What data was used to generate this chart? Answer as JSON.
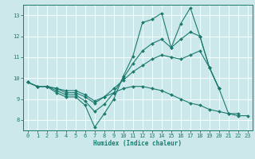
{
  "xlabel": "Humidex (Indice chaleur)",
  "bg_color": "#cce8ea",
  "grid_color": "#ffffff",
  "line_color": "#1a7a6e",
  "xlim": [
    -0.5,
    23.5
  ],
  "ylim": [
    7.5,
    13.5
  ],
  "xticks": [
    0,
    1,
    2,
    3,
    4,
    5,
    6,
    7,
    8,
    9,
    10,
    11,
    12,
    13,
    14,
    15,
    16,
    17,
    18,
    19,
    20,
    21,
    22,
    23
  ],
  "yticks": [
    8,
    9,
    10,
    11,
    12,
    13
  ],
  "lines": [
    {
      "x": [
        0,
        1,
        2,
        3,
        4,
        5,
        6,
        7,
        8,
        9,
        10,
        11,
        12,
        13,
        14,
        15,
        16,
        17,
        18,
        19,
        20
      ],
      "y": [
        9.8,
        9.6,
        9.6,
        9.3,
        9.1,
        9.1,
        8.7,
        7.65,
        8.3,
        9.0,
        10.1,
        11.05,
        12.65,
        12.8,
        13.1,
        11.45,
        12.6,
        13.35,
        12.0,
        10.5,
        9.5
      ]
    },
    {
      "x": [
        0,
        1,
        2,
        3,
        4,
        5,
        6,
        7,
        8,
        9,
        10,
        11,
        12,
        13,
        14,
        15,
        16,
        17,
        18,
        19,
        20
      ],
      "y": [
        9.8,
        9.6,
        9.6,
        9.4,
        9.2,
        9.2,
        8.9,
        8.4,
        8.75,
        9.3,
        10.0,
        10.7,
        11.3,
        11.65,
        11.85,
        11.45,
        11.85,
        12.2,
        12.0,
        10.5,
        9.5
      ]
    },
    {
      "x": [
        0,
        1,
        2,
        3,
        4,
        5,
        6,
        7,
        8,
        9,
        10,
        11,
        12,
        13,
        14,
        15,
        16,
        17,
        18,
        19,
        20,
        21,
        22
      ],
      "y": [
        9.8,
        9.6,
        9.6,
        9.5,
        9.3,
        9.3,
        9.1,
        8.8,
        9.1,
        9.5,
        9.9,
        10.3,
        10.6,
        10.9,
        11.1,
        11.0,
        10.9,
        11.1,
        11.3,
        10.5,
        9.5,
        8.3,
        8.3
      ]
    },
    {
      "x": [
        0,
        1,
        2,
        3,
        4,
        5,
        6,
        7,
        8,
        9,
        10,
        11,
        12,
        13,
        14,
        15,
        16,
        17,
        18,
        19,
        20,
        21,
        22,
        23
      ],
      "y": [
        9.8,
        9.6,
        9.6,
        9.5,
        9.4,
        9.4,
        9.2,
        8.9,
        9.1,
        9.3,
        9.5,
        9.6,
        9.6,
        9.5,
        9.4,
        9.2,
        9.0,
        8.8,
        8.7,
        8.5,
        8.4,
        8.3,
        8.2,
        8.2
      ]
    }
  ]
}
